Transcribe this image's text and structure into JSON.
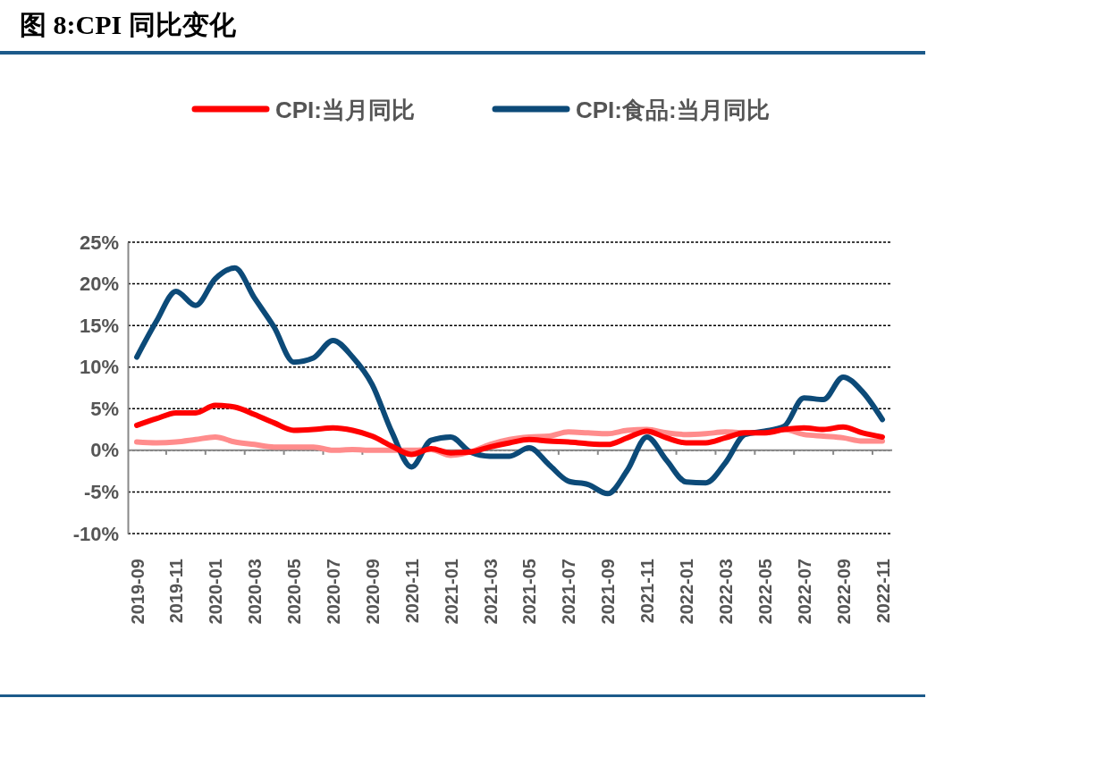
{
  "chart_data": {
    "type": "line",
    "title": "图 8:CPI 同比变化",
    "categories": [
      "2019-09",
      null,
      "2019-11",
      null,
      "2020-01",
      null,
      "2020-03",
      null,
      "2020-05",
      null,
      "2020-07",
      null,
      "2020-09",
      null,
      "2020-11",
      null,
      "2021-01",
      null,
      "2021-03",
      null,
      "2021-05",
      null,
      "2021-07",
      null,
      "2021-09",
      null,
      "2021-11",
      null,
      "2022-01",
      null,
      "2022-03",
      null,
      "2022-05",
      null,
      "2022-07",
      null,
      "2022-09",
      null,
      "2022-11"
    ],
    "series": [
      {
        "name": "CPI:当月同比",
        "color": "#ff0000",
        "values": [
          3.0,
          3.8,
          4.5,
          4.5,
          5.4,
          5.2,
          4.3,
          3.3,
          2.4,
          2.5,
          2.7,
          2.4,
          1.7,
          0.5,
          -0.5,
          0.2,
          -0.3,
          -0.2,
          0.4,
          0.9,
          1.3,
          1.1,
          1.0,
          0.8,
          0.7,
          1.5,
          2.3,
          1.5,
          0.9,
          0.9,
          1.5,
          2.1,
          2.1,
          2.5,
          2.7,
          2.5,
          2.8,
          2.1,
          1.6
        ]
      },
      {
        "name": "CPI:食品:当月同比",
        "color": "#0c4a78",
        "values": [
          11.2,
          15.5,
          19.1,
          17.4,
          20.6,
          21.9,
          18.3,
          14.8,
          10.6,
          11.1,
          13.2,
          11.2,
          7.9,
          2.2,
          -2.0,
          1.2,
          1.6,
          -0.2,
          -0.7,
          -0.7,
          0.3,
          -1.7,
          -3.7,
          -4.1,
          -5.2,
          -2.4,
          1.6,
          -1.2,
          -3.8,
          -3.9,
          -1.5,
          1.9,
          2.3,
          2.9,
          6.3,
          6.1,
          8.8,
          7.0,
          3.7
        ]
      },
      {
        "color": "#ff8c8c",
        "values": [
          1.0,
          0.9,
          1.0,
          1.3,
          1.6,
          1.0,
          0.7,
          0.4,
          0.4,
          0.4,
          0.0,
          0.1,
          0.0,
          0.0,
          0.0,
          0.1,
          -0.6,
          -0.2,
          0.7,
          1.3,
          1.6,
          1.7,
          2.2,
          2.1,
          2.0,
          2.4,
          2.5,
          2.1,
          1.9,
          2.0,
          2.2,
          2.1,
          2.1,
          2.5,
          1.9,
          1.7,
          1.5,
          1.1,
          1.1
        ]
      }
    ],
    "ylim": [
      -10,
      25
    ],
    "yticks": [
      {
        "value": -10,
        "label": "-10%"
      },
      {
        "value": -5,
        "label": "-5%"
      },
      {
        "value": 0,
        "label": "0%"
      },
      {
        "value": 5,
        "label": "5%"
      },
      {
        "value": 10,
        "label": "10%"
      },
      {
        "value": 15,
        "label": "15%"
      },
      {
        "value": 20,
        "label": "20%"
      },
      {
        "value": 25,
        "label": "25%"
      }
    ],
    "grid": "y",
    "legend": "top",
    "marker": "none",
    "line_style": "solid"
  }
}
